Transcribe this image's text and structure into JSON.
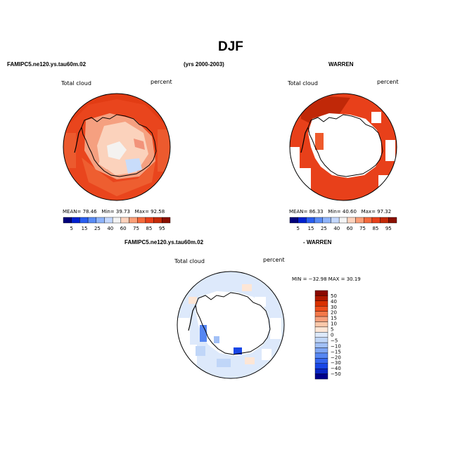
{
  "page": {
    "title": "DJF",
    "model_label": "FAMIPC5.ne120.ys.tau60m.02",
    "years_label": "(yrs 2000-2003)",
    "obs_label": "WARREN",
    "diff_model_label": "FAMIPC5.ne120.ys.tau60m.02",
    "diff_obs_label": "- WARREN"
  },
  "panels": [
    {
      "variable": "Total cloud",
      "units": "percent",
      "stats": {
        "mean_label": "MEAN=",
        "mean": "78.46",
        "min_label": "Min=",
        "min": "39.73",
        "max_label": "Max=",
        "max": "92.58"
      }
    },
    {
      "variable": "Total cloud",
      "units": "percent",
      "stats": {
        "mean_label": "MEAN=",
        "mean": "86.33",
        "min_label": "Min=",
        "min": "40.60",
        "max_label": "Max=",
        "max": "97.32"
      }
    },
    {
      "variable": "Total cloud",
      "units": "percent",
      "minmax_text": "MIN = −32.98  MAX =  30.19"
    }
  ],
  "colorbar_main": {
    "colors": [
      "#00007a",
      "#0020d0",
      "#2a5ef0",
      "#5a8cf5",
      "#8fb4fa",
      "#c4d8fd",
      "#f4f4f4",
      "#fdd3bd",
      "#fb9f78",
      "#f56a3c",
      "#e8401a",
      "#c42a08",
      "#8a1000"
    ],
    "tick_labels": [
      "5",
      "15",
      "25",
      "40",
      "60",
      "75",
      "85",
      "95"
    ]
  },
  "colorbar_diff": {
    "colors": [
      "#8a0800",
      "#b01800",
      "#d83000",
      "#ee4e1c",
      "#f3794a",
      "#f7a07c",
      "#fbc8aa",
      "#fde6d6",
      "#dde9fb",
      "#c0d6f8",
      "#a2c0f6",
      "#7fa6f4",
      "#5686f2",
      "#3566f0",
      "#1846e6",
      "#0a26c4",
      "#00008a"
    ],
    "tick_labels": [
      "50",
      "40",
      "30",
      "20",
      "15",
      "10",
      "5",
      "0",
      "−5",
      "−10",
      "−15",
      "−20",
      "−30",
      "−40",
      "−50"
    ]
  }
}
